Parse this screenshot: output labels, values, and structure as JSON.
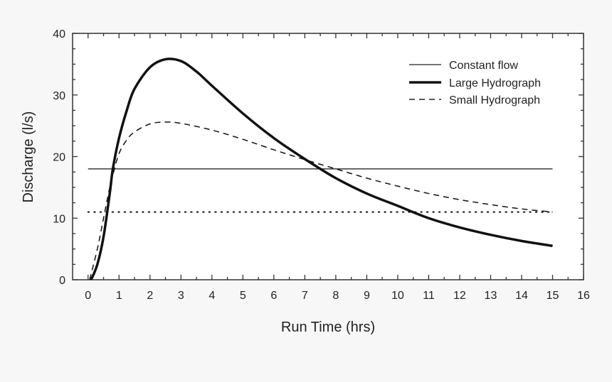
{
  "chart_data": {
    "type": "line",
    "title": "",
    "xlabel": "Run Time (hrs)",
    "ylabel": "Discharge (l/s)",
    "xlim": [
      -0.5,
      16
    ],
    "ylim": [
      0,
      40
    ],
    "xticks": [
      0,
      1,
      2,
      3,
      4,
      5,
      6,
      7,
      8,
      9,
      10,
      11,
      12,
      13,
      14,
      15,
      16
    ],
    "yticks": [
      0,
      10,
      20,
      30,
      40
    ],
    "grid": false,
    "legend_position": "top-right",
    "series": [
      {
        "name": "Constant flow",
        "style": "solid-thin",
        "x": [
          0,
          15
        ],
        "y": [
          18,
          18
        ]
      },
      {
        "name": "Large Hydrograph",
        "style": "solid-thick",
        "x": [
          0.1,
          0.3,
          0.5,
          0.7,
          0.8,
          1,
          1.25,
          1.5,
          2,
          2.5,
          3,
          3.5,
          4,
          5,
          6,
          7,
          8,
          9,
          10,
          11,
          12,
          13,
          14,
          15
        ],
        "y": [
          0,
          2.5,
          7,
          14,
          18,
          23,
          27.5,
          31,
          34.5,
          35.8,
          35.5,
          33.8,
          31.5,
          27,
          23,
          19.6,
          16.5,
          14,
          12,
          10,
          8.5,
          7.3,
          6.3,
          5.5
        ]
      },
      {
        "name": "Small Hydrograph",
        "style": "dashed",
        "x": [
          0.05,
          0.3,
          0.5,
          0.7,
          0.8,
          1,
          1.25,
          1.5,
          2,
          2.5,
          3,
          4,
          5,
          6,
          7,
          8,
          9,
          10,
          11,
          12,
          13,
          14,
          15
        ],
        "y": [
          0,
          5,
          10,
          15,
          17,
          20.5,
          22.7,
          24,
          25.3,
          25.6,
          25.4,
          24.3,
          22.8,
          21.1,
          19.5,
          18,
          16.5,
          15.2,
          14,
          13,
          12.2,
          11.5,
          11
        ]
      },
      {
        "name": "",
        "style": "dotted",
        "x": [
          0,
          15
        ],
        "y": [
          11,
          11
        ]
      }
    ]
  }
}
